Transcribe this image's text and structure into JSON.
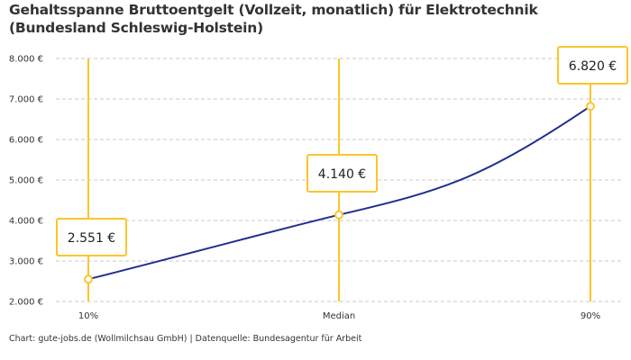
{
  "chart_data": {
    "type": "line",
    "title": "Gehaltsspanne Bruttoentgelt (Vollzeit, monatlich) für Elektrotechnik (Bundesland Schleswig-Holstein)",
    "categories": [
      "10%",
      "Median",
      "90%"
    ],
    "values": [
      2551,
      4140,
      6820
    ],
    "data_labels": [
      "2.551 €",
      "4.140 €",
      "6.820 €"
    ],
    "ylim": [
      2000,
      8000
    ],
    "yticks": [
      2000,
      3000,
      4000,
      5000,
      6000,
      7000,
      8000
    ],
    "ytick_labels": [
      "2.000 €",
      "3.000 €",
      "4.000 €",
      "5.000 €",
      "6.000 €",
      "7.000 €",
      "8.000 €"
    ],
    "grid": true,
    "colors": {
      "line": "#1f2f8f",
      "accent": "#fcc52b",
      "grid": "#c8c8c8"
    }
  },
  "source": "Chart: gute-jobs.de (Wollmilchsau GmbH) | Datenquelle: Bundesagentur für Arbeit"
}
